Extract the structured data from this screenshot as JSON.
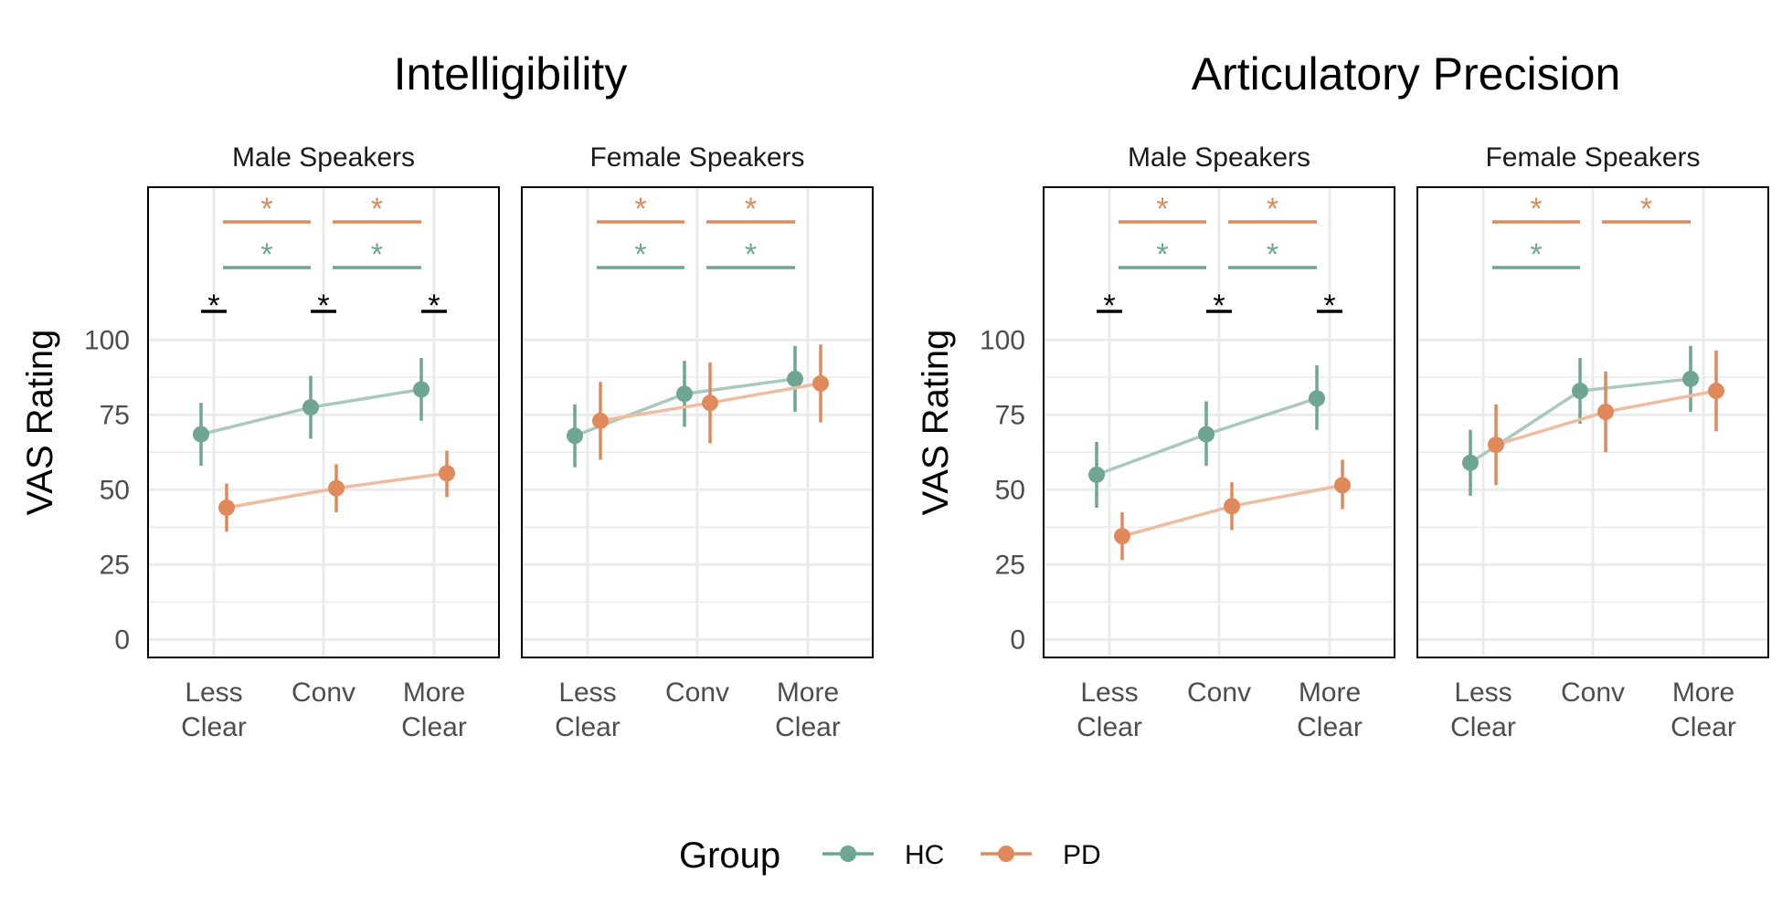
{
  "colors": {
    "HC": "#6fa593",
    "PD": "#e08a5c",
    "HC_line": "#a9c9bd",
    "PD_line": "#eebc9f",
    "grid": "#ebebeb",
    "sig_group": "#000000"
  },
  "ylabel": "VAS Rating",
  "legend": {
    "title": "Group",
    "items": [
      "HC",
      "PD"
    ]
  },
  "chart_data": [
    {
      "type": "line",
      "title": "Intelligibility",
      "ylabel": "VAS Rating",
      "ylim": [
        -6,
        151
      ],
      "yticks": [
        "0",
        "25",
        "50",
        "75",
        "100"
      ],
      "categories": [
        "Less\nClear",
        "Conv",
        "More\nClear"
      ],
      "panels": [
        {
          "strip": "Male Speakers",
          "series": [
            {
              "name": "HC",
              "values": [
                68.5,
                77.5,
                83.5
              ],
              "lower": [
                58,
                67,
                73
              ],
              "upper": [
                79,
                88,
                94
              ]
            },
            {
              "name": "PD",
              "values": [
                44,
                50.5,
                55.5
              ],
              "lower": [
                36,
                42.5,
                47.5
              ],
              "upper": [
                52,
                58.5,
                63
              ]
            }
          ],
          "group_diff_stars": [
            "*",
            "*",
            "*"
          ],
          "condition_stars": {
            "PD": [
              "*",
              "*"
            ],
            "HC": [
              "*",
              "*"
            ]
          }
        },
        {
          "strip": "Female Speakers",
          "series": [
            {
              "name": "HC",
              "values": [
                68,
                82,
                87
              ],
              "lower": [
                57.5,
                71,
                76
              ],
              "upper": [
                78.5,
                93,
                98
              ]
            },
            {
              "name": "PD",
              "values": [
                73,
                79,
                85.5
              ],
              "lower": [
                60,
                65.5,
                72.5
              ],
              "upper": [
                86,
                92.5,
                98.5
              ]
            }
          ],
          "group_diff_stars": [],
          "condition_stars": {
            "PD": [
              "*",
              "*"
            ],
            "HC": [
              "*",
              "*"
            ]
          }
        }
      ]
    },
    {
      "type": "line",
      "title": "Articulatory Precision",
      "ylabel": "VAS Rating",
      "ylim": [
        -6,
        151
      ],
      "yticks": [
        "0",
        "25",
        "50",
        "75",
        "100"
      ],
      "categories": [
        "Less\nClear",
        "Conv",
        "More\nClear"
      ],
      "panels": [
        {
          "strip": "Male Speakers",
          "series": [
            {
              "name": "HC",
              "values": [
                55,
                68.5,
                80.5
              ],
              "lower": [
                44,
                58,
                70
              ],
              "upper": [
                66,
                79.5,
                91.5
              ]
            },
            {
              "name": "PD",
              "values": [
                34.5,
                44.5,
                51.5
              ],
              "lower": [
                26.5,
                36.5,
                43.5
              ],
              "upper": [
                42.5,
                52.5,
                60
              ]
            }
          ],
          "group_diff_stars": [
            "*",
            "*",
            "*"
          ],
          "condition_stars": {
            "PD": [
              "*",
              "*"
            ],
            "HC": [
              "*",
              "*"
            ]
          }
        },
        {
          "strip": "Female Speakers",
          "series": [
            {
              "name": "HC",
              "values": [
                59,
                83,
                87
              ],
              "lower": [
                48,
                72,
                76
              ],
              "upper": [
                70,
                94,
                98
              ]
            },
            {
              "name": "PD",
              "values": [
                65,
                76,
                83
              ],
              "lower": [
                51.5,
                62.5,
                69.5
              ],
              "upper": [
                78.5,
                89.5,
                96.5
              ]
            }
          ],
          "group_diff_stars": [],
          "condition_stars": {
            "PD": [
              "*",
              "*"
            ],
            "HC": [
              "*"
            ]
          }
        }
      ]
    }
  ]
}
